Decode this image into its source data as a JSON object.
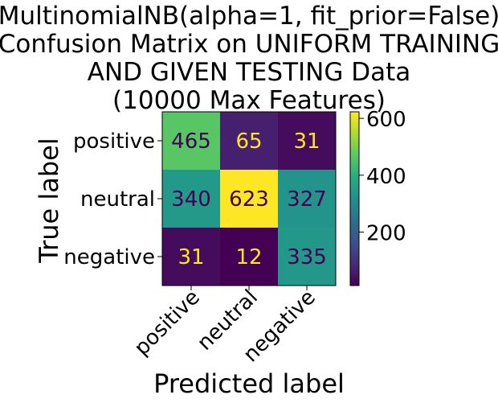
{
  "chart_data": {
    "type": "heatmap",
    "title": "MultinomialNB(alpha=1, fit_prior=False)\nConfusion Matrix on UNIFORM TRAINING\nAND GIVEN TESTING Data\n(10000 Max Features)",
    "xlabel": "Predicted label",
    "ylabel": "True label",
    "x_categories": [
      "positive",
      "neutral",
      "negative"
    ],
    "y_categories": [
      "positive",
      "neutral",
      "negative"
    ],
    "values": [
      [
        465,
        65,
        31
      ],
      [
        340,
        623,
        327
      ],
      [
        31,
        12,
        335
      ]
    ],
    "colormap": "viridis",
    "color_range": [
      12,
      623
    ],
    "colorbar_ticks": [
      200,
      400,
      600
    ],
    "grid": false
  }
}
